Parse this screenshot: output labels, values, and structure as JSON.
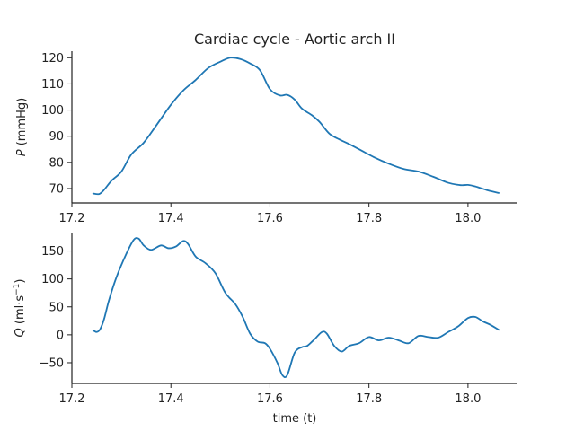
{
  "figure": {
    "title": "Cardiac cycle - Aortic arch II",
    "series_color": "#1f77b4",
    "axis_color": "#222222"
  },
  "chart_data": [
    {
      "type": "line",
      "title": "Cardiac cycle - Aortic arch II",
      "xlabel": "",
      "ylabel": "P (mmHg)",
      "ylabel_parts": {
        "italic": "P",
        "rest": " (mmHg)"
      },
      "xlim": [
        17.2,
        18.1
      ],
      "ylim": [
        64.5,
        122.5
      ],
      "xticks": [
        17.2,
        17.4,
        17.6,
        17.8,
        18.0
      ],
      "xtick_labels": [
        "17.2",
        "17.4",
        "17.6",
        "17.8",
        "18.0"
      ],
      "yticks": [
        70,
        80,
        90,
        100,
        110,
        120
      ],
      "ytick_labels": [
        "70",
        "80",
        "90",
        "100",
        "110",
        "120"
      ],
      "grid": false,
      "x": [
        17.243,
        17.255,
        17.265,
        17.28,
        17.3,
        17.32,
        17.345,
        17.37,
        17.4,
        17.425,
        17.45,
        17.475,
        17.5,
        17.52,
        17.54,
        17.56,
        17.58,
        17.6,
        17.62,
        17.635,
        17.65,
        17.665,
        17.685,
        17.7,
        17.72,
        17.74,
        17.76,
        17.785,
        17.81,
        17.84,
        17.87,
        17.9,
        17.93,
        17.96,
        17.985,
        18.0,
        18.015,
        18.04,
        18.062
      ],
      "values": [
        68.1,
        67.9,
        69.5,
        73.0,
        76.5,
        83.0,
        87.5,
        94.0,
        102.0,
        107.5,
        111.5,
        116.0,
        118.5,
        120.0,
        119.5,
        117.8,
        115.2,
        108.0,
        105.6,
        105.8,
        104.0,
        100.5,
        98.0,
        95.5,
        91.0,
        88.8,
        87.0,
        84.5,
        82.0,
        79.5,
        77.5,
        76.5,
        74.5,
        72.2,
        71.3,
        71.4,
        70.8,
        69.3,
        68.3
      ]
    },
    {
      "type": "line",
      "title": "",
      "xlabel": "time (t)",
      "ylabel": "Q (ml·s⁻¹)",
      "ylabel_parts": {
        "italic": "Q",
        "rest": " (ml·s",
        "sup": "−1",
        "end": ")"
      },
      "xlim": [
        17.2,
        18.1
      ],
      "ylim": [
        -87,
        183
      ],
      "xticks": [
        17.2,
        17.4,
        17.6,
        17.8,
        18.0
      ],
      "xtick_labels": [
        "17.2",
        "17.4",
        "17.6",
        "17.8",
        "18.0"
      ],
      "yticks": [
        -50,
        0,
        50,
        100,
        150
      ],
      "ytick_labels": [
        "−50",
        "0",
        "50",
        "100",
        "150"
      ],
      "grid": false,
      "x": [
        17.243,
        17.25,
        17.257,
        17.265,
        17.275,
        17.29,
        17.31,
        17.325,
        17.335,
        17.345,
        17.36,
        17.38,
        17.395,
        17.41,
        17.425,
        17.435,
        17.45,
        17.47,
        17.49,
        17.51,
        17.53,
        17.545,
        17.56,
        17.575,
        17.59,
        17.6,
        17.615,
        17.625,
        17.635,
        17.65,
        17.665,
        17.675,
        17.69,
        17.705,
        17.715,
        17.73,
        17.745,
        17.76,
        17.78,
        17.8,
        17.82,
        17.84,
        17.86,
        17.88,
        17.9,
        17.92,
        17.94,
        17.96,
        17.98,
        18.0,
        18.015,
        18.03,
        18.045,
        18.062
      ],
      "values": [
        8,
        5,
        10,
        28,
        62,
        103,
        145,
        170,
        172,
        160,
        152,
        160,
        155,
        158,
        168,
        162,
        140,
        128,
        110,
        75,
        55,
        32,
        2,
        -12,
        -15,
        -25,
        -50,
        -72,
        -72,
        -32,
        -22,
        -20,
        -8,
        5,
        2,
        -20,
        -30,
        -20,
        -15,
        -4,
        -10,
        -5,
        -10,
        -15,
        -2,
        -4,
        -5,
        5,
        15,
        30,
        32,
        24,
        18,
        9
      ]
    }
  ]
}
